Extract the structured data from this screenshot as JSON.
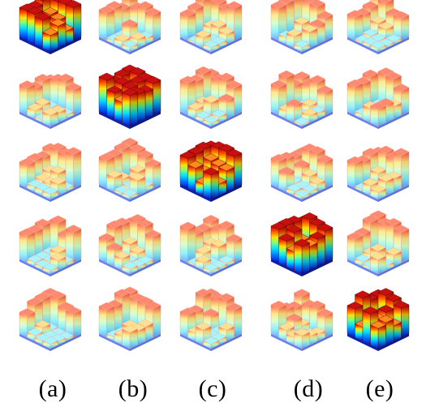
{
  "figure": {
    "rows": 5,
    "columns": 5,
    "column_labels": [
      "(a)",
      "(b)",
      "(c)",
      "(d)",
      "(e)"
    ],
    "colormap": "jet",
    "colors": {
      "low": "#1a1aff",
      "mid": "#5ff0ff",
      "high": "#ff3a2a",
      "top": "#ff9a7a",
      "base": "#3b52e8",
      "background": "#ffffff"
    },
    "diagonal_style": "saturated",
    "offdiagonal_style": "pastel"
  }
}
